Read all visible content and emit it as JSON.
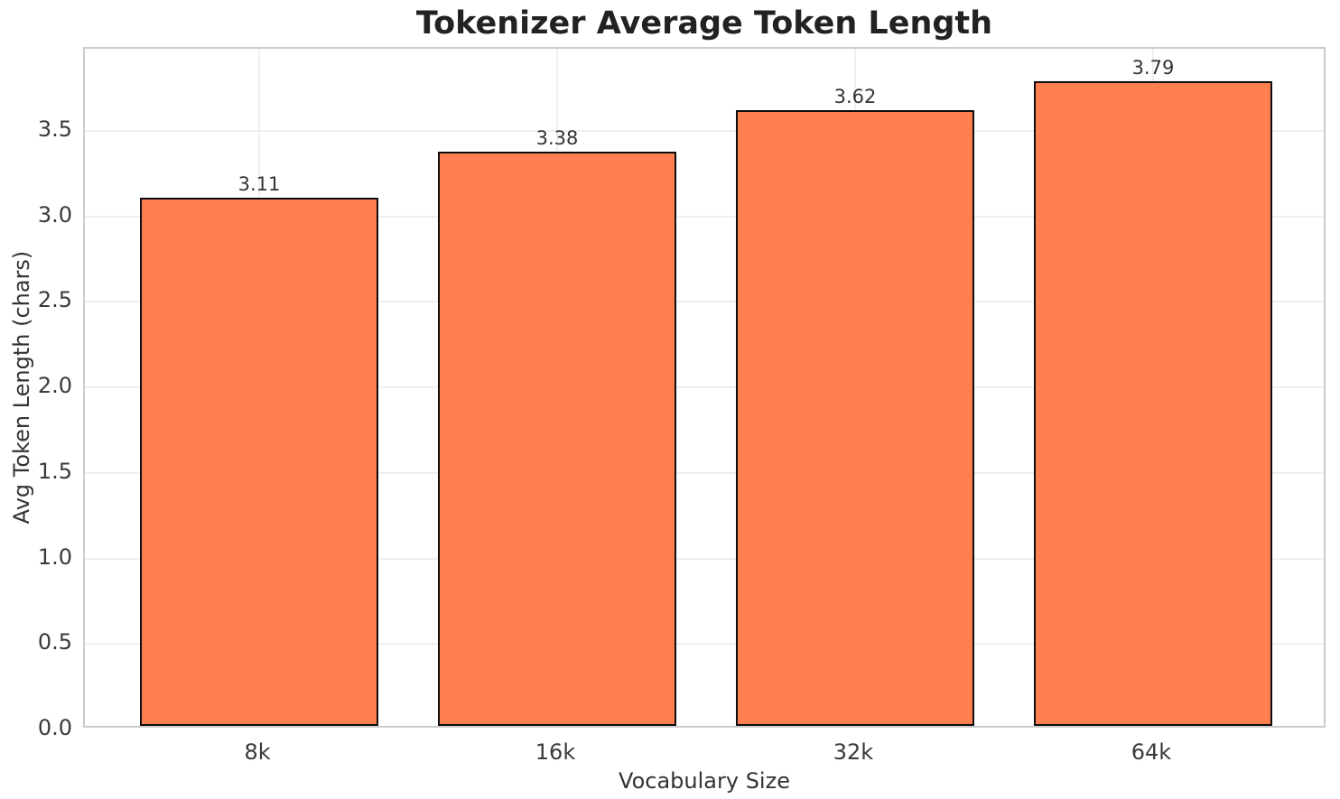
{
  "chart_data": {
    "type": "bar",
    "title": "Tokenizer Average Token Length",
    "xlabel": "Vocabulary Size",
    "ylabel": "Avg Token Length (chars)",
    "categories": [
      "8k",
      "16k",
      "32k",
      "64k"
    ],
    "values": [
      3.11,
      3.38,
      3.62,
      3.79
    ],
    "bar_value_labels": [
      "3.11",
      "3.38",
      "3.62",
      "3.79"
    ],
    "ytick_labels": [
      "0.0",
      "0.5",
      "1.0",
      "1.5",
      "2.0",
      "2.5",
      "3.0",
      "3.5"
    ],
    "yticks": [
      0.0,
      0.5,
      1.0,
      1.5,
      2.0,
      2.5,
      3.0,
      3.5
    ],
    "ylim": [
      0,
      3.98
    ],
    "xlim": [
      -0.585,
      3.585
    ],
    "bar_width": 0.8,
    "grid": true,
    "legend": "none",
    "colors": {
      "bar_fill": "#FF7F50",
      "bar_edge": "#0d0d0d",
      "grid_line": "#efefef",
      "spine": "#cccccc",
      "tick_text": "#3a3a3a",
      "label_text": "#333333",
      "title_text": "#222222",
      "background": "#ffffff"
    }
  }
}
